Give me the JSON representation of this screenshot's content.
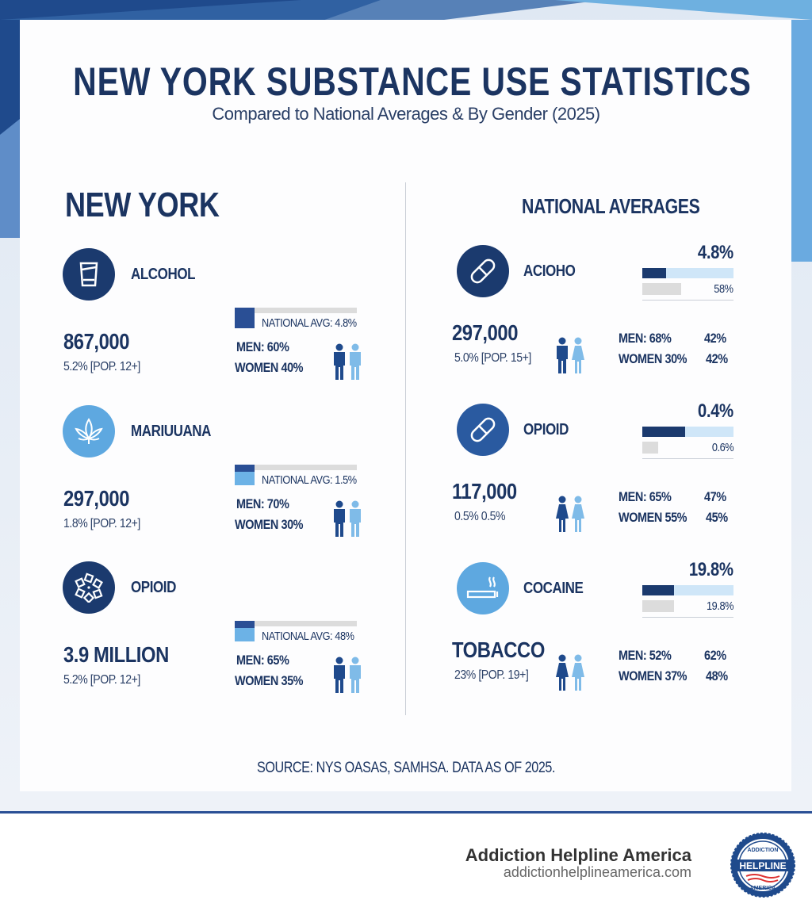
{
  "header": {
    "title": "NEW YORK SUBSTANCE USE STATISTICS",
    "subtitle": "Compared to National Averages & By Gender (2025)"
  },
  "colors": {
    "navy": "#1b3a6e",
    "light_blue": "#5ea8e0",
    "pale_blue": "#cfe6f8",
    "gray": "#dcdcdc"
  },
  "new_york": {
    "heading": "NEW YORK",
    "items": [
      {
        "icon": "glass-icon",
        "label": "ALCOHOL",
        "count": "867,000",
        "rate": "5.2% [POP. 12+]",
        "national_avg": "NATIONAL AVG: 4.8%",
        "men": "MEN:  60%",
        "women": "WOMEN  40%",
        "icon_color": "#1b3a6e"
      },
      {
        "icon": "cannabis-leaf-icon",
        "label": "MARIUUANA",
        "count": "297,000",
        "rate": "1.8% [POP. 12+]",
        "national_avg": "NATIONAL AVG: 1.5%",
        "men": "MEN:  70%",
        "women": "WOMEN  30%",
        "icon_color": "#5ea8e0"
      },
      {
        "icon": "pills-icon",
        "label": "OPIOID",
        "count": "3.9 MILLION",
        "rate": "5.2% [POP. 12+]",
        "national_avg": "NATIONAL AVG: 48%",
        "men": "MEN:  65%",
        "women": "WOMEN  35%",
        "icon_color": "#1b3a6e"
      }
    ]
  },
  "national": {
    "heading": "NATIONAL AVERAGES",
    "items": [
      {
        "icon": "capsule-icon",
        "label": "ACIOHO",
        "top_pct": "4.8%",
        "top_fill": 0.26,
        "second_pct": "58%",
        "second_fill": 0.43,
        "count": "297,000",
        "rate": "5.0% [POP. 15+]",
        "men": "MEN:  68%",
        "men_extra": "42%",
        "women": "WOMEN  30%",
        "women_extra": "42%",
        "icon_color": "#1b3a6e"
      },
      {
        "icon": "capsule-icon",
        "label": "OPIOID",
        "top_pct": "0.4%",
        "top_fill": 0.47,
        "second_pct": "0.6%",
        "second_fill": 0.17,
        "count": "117,000",
        "rate": "0.5% 0.5%",
        "men": "MEN:  65%",
        "men_extra": "47%",
        "women": "WOMEN  55%",
        "women_extra": "45%",
        "icon_color": "#2a5aa0"
      },
      {
        "icon": "cigarette-icon",
        "label": "COCAINE",
        "top_pct": "19.8%",
        "top_fill": 0.35,
        "second_pct": "19.8%",
        "second_fill": 0.35,
        "count": "TOBACCO",
        "rate": "23% [POP. 19+]",
        "men": "MEN:  52%",
        "men_extra": "62%",
        "women": "WOMEN  37%",
        "women_extra": "48%",
        "icon_color": "#5ea8e0"
      }
    ]
  },
  "source": "SOURCE: NYS OASAS, SAMHSA. DATA AS OF 2025.",
  "footer": {
    "brand": "Addiction Helpline America",
    "url": "addictionhelplineamerica.com",
    "logo_text": "ADDICTION HELPLINE AMERICA"
  }
}
